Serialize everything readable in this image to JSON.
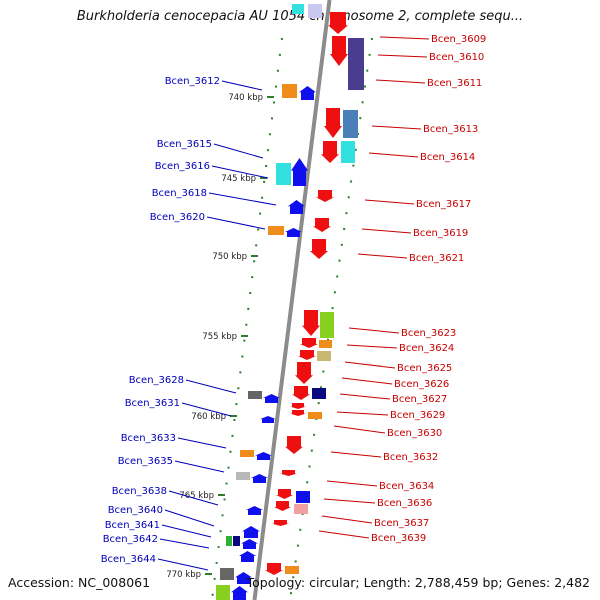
{
  "title": "Burkholderia cenocepacia AU 1054 chromosome 2, complete sequ...",
  "footer": {
    "accession": "Accession: NC_008061",
    "topology": "Topology: circular; Length: 2,788,459 bp; Genes: 2,482"
  },
  "colors": {
    "axis": "#8c8c8c",
    "tick": "#2e7d2e",
    "left_label": "#0000b8",
    "right_label": "#c80000",
    "forward_gene": "#1010ee",
    "reverse_gene": "#ee1010"
  },
  "kbp_ticks": [
    "740 kbp",
    "745 kbp",
    "750 kbp",
    "755 kbp",
    "760 kbp",
    "765 kbp",
    "770 kbp"
  ],
  "left_genes": [
    "Bcen_3612",
    "Bcen_3615",
    "Bcen_3616",
    "Bcen_3618",
    "Bcen_3620",
    "Bcen_3628",
    "Bcen_3631",
    "Bcen_3633",
    "Bcen_3635",
    "Bcen_3638",
    "Bcen_3640",
    "Bcen_3641",
    "Bcen_3642",
    "Bcen_3644"
  ],
  "right_genes": [
    "Bcen_3609",
    "Bcen_3610",
    "Bcen_3611",
    "Bcen_3613",
    "Bcen_3614",
    "Bcen_3617",
    "Bcen_3619",
    "Bcen_3621",
    "Bcen_3623",
    "Bcen_3624",
    "Bcen_3625",
    "Bcen_3626",
    "Bcen_3627",
    "Bcen_3629",
    "Bcen_3630",
    "Bcen_3632",
    "Bcen_3634",
    "Bcen_3636",
    "Bcen_3637",
    "Bcen_3639"
  ]
}
